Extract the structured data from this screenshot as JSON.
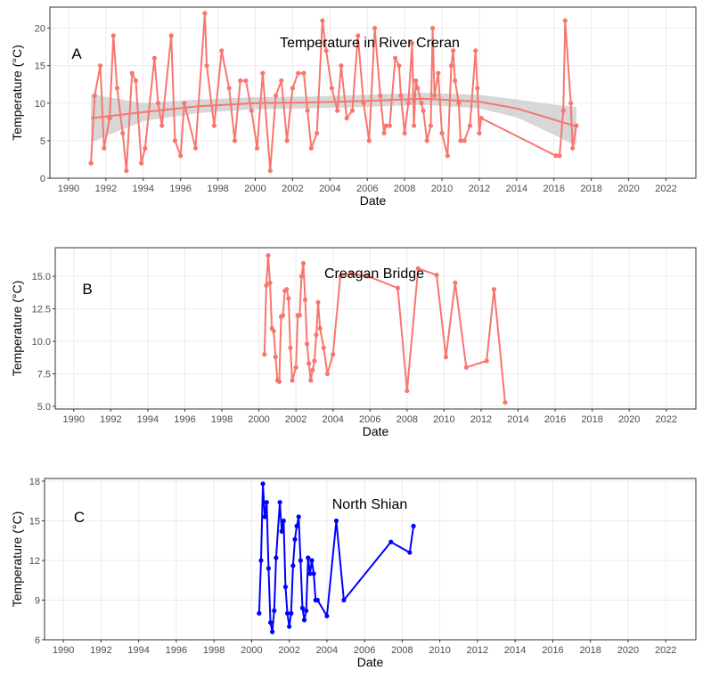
{
  "chart_data": [
    {
      "type": "line",
      "panel_label": "A",
      "title": "Temperature in River Creran",
      "xlabel": "Date",
      "ylabel": "Temperature (°C)",
      "xlim": [
        1989.0,
        2023.6
      ],
      "ylim": [
        0,
        22.8
      ],
      "x_ticks": [
        1990,
        1992,
        1994,
        1996,
        1998,
        2000,
        2002,
        2004,
        2006,
        2008,
        2010,
        2012,
        2014,
        2016,
        2018,
        2020,
        2022
      ],
      "y_ticks": [
        0,
        5,
        10,
        15,
        20
      ],
      "color": "#F8766D",
      "grid": true,
      "smooth_trend": true,
      "series": [
        {
          "x": [
            1991.2,
            1991.4,
            1991.7,
            1991.9,
            1992.2,
            1992.4,
            1992.6,
            1992.9,
            1993.1,
            1993.4,
            1993.6,
            1993.9,
            1994.1,
            1994.6,
            1994.8,
            1995.0,
            1995.5,
            1995.7,
            1996.0,
            1996.2,
            1996.8,
            1997.3,
            1997.4,
            1997.8,
            1998.2,
            1998.6,
            1998.9,
            1999.2,
            1999.5,
            1999.8,
            2000.1,
            2000.4,
            2000.8,
            2001.1,
            2001.4,
            2001.7,
            2002.0,
            2002.3,
            2002.6,
            2002.8,
            2003.0,
            2003.3,
            2003.6,
            2003.8,
            2004.1,
            2004.4,
            2004.6,
            2004.9,
            2005.2,
            2005.5,
            2005.8,
            2006.1,
            2006.4,
            2006.7,
            2006.9,
            2007.0,
            2007.2,
            2007.5,
            2007.7,
            2007.8,
            2008.0,
            2008.2,
            2008.4,
            2008.5,
            2008.6,
            2008.7,
            2008.9,
            2009.0,
            2009.2,
            2009.4,
            2009.5,
            2009.6,
            2009.8,
            2010.0,
            2010.3,
            2010.5,
            2010.6,
            2010.7,
            2010.9,
            2011.0,
            2011.2,
            2011.5,
            2011.8,
            2011.9,
            2012.0,
            2012.1,
            2016.1,
            2016.3,
            2016.5,
            2016.6,
            2016.9,
            2017.0,
            2017.2
          ],
          "y": [
            2,
            11,
            15,
            4,
            8,
            19,
            12,
            6,
            1,
            14,
            13,
            2,
            4,
            16,
            10,
            7,
            19,
            5,
            3,
            10,
            4,
            22,
            15,
            7,
            17,
            12,
            5,
            13,
            13,
            9,
            4,
            14,
            1,
            11,
            13,
            5,
            12,
            14,
            14,
            9,
            4,
            6,
            21,
            17,
            12,
            9,
            15,
            8,
            9,
            19,
            10,
            5,
            20,
            11,
            6,
            7,
            7,
            16,
            15,
            11,
            6,
            10,
            18,
            7,
            13,
            12,
            10,
            9,
            5,
            7,
            20,
            11,
            14,
            6,
            3,
            15,
            17,
            13,
            10,
            5,
            5,
            7,
            17,
            12,
            6,
            8,
            3,
            3,
            9,
            21,
            10,
            4,
            7
          ]
        }
      ],
      "trend_x": [
        1991.2,
        1994,
        1997,
        2000,
        2003,
        2006,
        2009,
        2012,
        2014,
        2016,
        2017.2
      ],
      "trend_y": [
        8.0,
        8.8,
        9.6,
        10.0,
        10.1,
        10.3,
        10.6,
        10.2,
        9.3,
        7.8,
        6.9
      ],
      "band_half_width": [
        3.2,
        1.2,
        0.9,
        0.8,
        0.8,
        0.8,
        0.8,
        0.9,
        1.2,
        2.0,
        2.6
      ]
    },
    {
      "type": "line",
      "panel_label": "B",
      "title": "Creagan Bridge",
      "xlabel": "Date",
      "ylabel": "Temperature (°C)",
      "xlim": [
        1989.0,
        2023.6
      ],
      "ylim": [
        4.8,
        17.2
      ],
      "x_ticks": [
        1990,
        1992,
        1994,
        1996,
        1998,
        2000,
        2002,
        2004,
        2006,
        2008,
        2010,
        2012,
        2014,
        2016,
        2018,
        2020,
        2022
      ],
      "y_ticks": [
        5.0,
        7.5,
        10.0,
        12.5,
        15.0
      ],
      "y_tick_labels": [
        "5.0",
        "7.5",
        "10.0",
        "12.5",
        "15.0"
      ],
      "color": "#F8766D",
      "grid": true,
      "series": [
        {
          "x": [
            2000.3,
            2000.4,
            2000.5,
            2000.6,
            2000.7,
            2000.8,
            2000.9,
            2001.0,
            2001.1,
            2001.2,
            2001.3,
            2001.4,
            2001.5,
            2001.6,
            2001.7,
            2001.8,
            2002.0,
            2002.1,
            2002.2,
            2002.3,
            2002.4,
            2002.5,
            2002.6,
            2002.7,
            2002.8,
            2002.9,
            2003.0,
            2003.1,
            2003.2,
            2003.3,
            2003.5,
            2003.7,
            2004.0,
            2004.4,
            2005.0,
            2005.9,
            2007.5,
            2008.0,
            2008.6,
            2009.6,
            2010.1,
            2010.6,
            2011.2,
            2012.3,
            2012.7,
            2013.3
          ],
          "y": [
            9.0,
            14.3,
            16.6,
            14.5,
            11.0,
            10.8,
            8.8,
            7.0,
            6.9,
            11.9,
            12.0,
            13.9,
            14.0,
            13.3,
            9.5,
            7.0,
            8.0,
            12.0,
            12.0,
            15.0,
            16.0,
            13.2,
            9.8,
            8.3,
            7.0,
            7.8,
            8.5,
            10.5,
            13.0,
            11.0,
            9.5,
            7.5,
            9.0,
            15.0,
            15.2,
            15.0,
            14.1,
            6.2,
            15.6,
            15.1,
            8.8,
            14.5,
            8.0,
            8.5,
            14.0,
            5.3
          ]
        }
      ]
    },
    {
      "type": "line",
      "panel_label": "C",
      "title": "North Shian",
      "xlabel": "Date",
      "ylabel": "Temperature (°C)",
      "xlim": [
        1989.0,
        2023.6
      ],
      "ylim": [
        6,
        18.2
      ],
      "x_ticks": [
        1990,
        1992,
        1994,
        1996,
        1998,
        2000,
        2002,
        2004,
        2006,
        2008,
        2010,
        2012,
        2014,
        2016,
        2018,
        2020,
        2022
      ],
      "y_ticks": [
        6,
        9,
        12,
        15,
        18
      ],
      "color": "#0000FF",
      "grid": true,
      "series": [
        {
          "x": [
            2000.4,
            2000.5,
            2000.6,
            2000.7,
            2000.8,
            2000.9,
            2001.0,
            2001.1,
            2001.2,
            2001.3,
            2001.5,
            2001.6,
            2001.7,
            2001.8,
            2001.9,
            2002.0,
            2002.1,
            2002.2,
            2002.3,
            2002.4,
            2002.5,
            2002.6,
            2002.7,
            2002.8,
            2002.9,
            2003.0,
            2003.1,
            2003.2,
            2003.3,
            2003.4,
            2003.5,
            2004.0,
            2004.5,
            2004.9,
            2007.4,
            2008.4,
            2008.6
          ],
          "y": [
            8.0,
            12.0,
            17.8,
            15.3,
            16.4,
            11.4,
            7.3,
            6.6,
            8.2,
            12.2,
            16.4,
            14.2,
            15.0,
            10.0,
            8.0,
            7.0,
            8.0,
            11.6,
            13.6,
            14.6,
            15.3,
            12.0,
            8.4,
            7.5,
            8.2,
            12.2,
            11.0,
            12.0,
            11.0,
            9.0,
            9.0,
            7.8,
            15.0,
            9.0,
            13.4,
            12.6,
            14.6
          ]
        }
      ]
    }
  ]
}
